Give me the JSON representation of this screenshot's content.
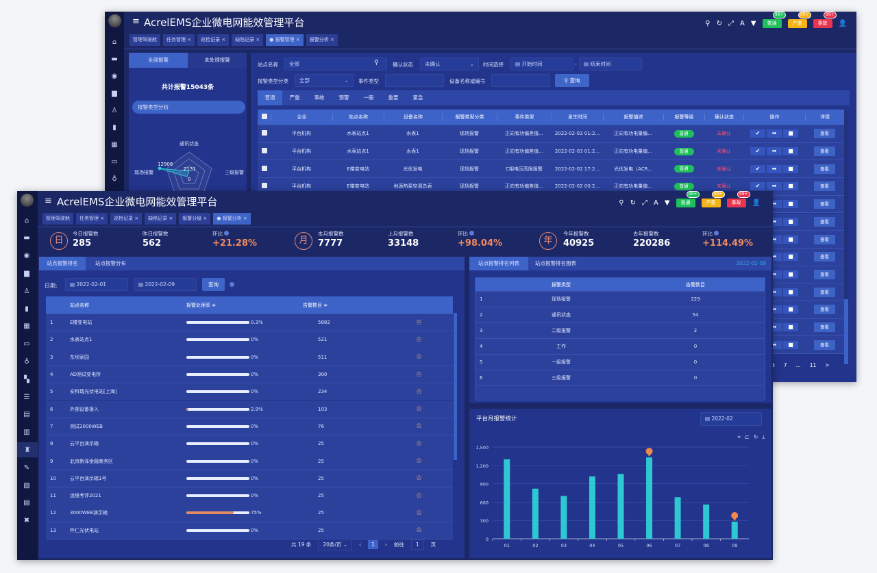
{
  "app_title": "AcrelEMS企业微电网能效管理平台",
  "header_icons": [
    "search-icon",
    "refresh-icon",
    "fullscreen-icon",
    "font-size-icon",
    "theme-shirt-icon"
  ],
  "badges": [
    {
      "label": "普通",
      "count": "99+",
      "color": "#1fbf5b"
    },
    {
      "label": "严重",
      "count": "99+",
      "color": "#f5b316"
    },
    {
      "label": "事故",
      "count": "99+",
      "color": "#e8344e"
    }
  ],
  "back": {
    "tabs": [
      {
        "label": "管理驾驶舱",
        "active": false
      },
      {
        "label": "任务管理 ×",
        "active": false
      },
      {
        "label": "巡检记录 ×",
        "active": false
      },
      {
        "label": "缺陷记录 ×",
        "active": false
      },
      {
        "label": "● 报警管理 ×",
        "active": true
      },
      {
        "label": "报警分析 ×",
        "active": false
      }
    ],
    "left": {
      "tab_all": "全部报警",
      "tab_unhandled": "未处理报警",
      "total": "共计报警15043条",
      "section": "报警类型分析",
      "radar_labels": [
        "通讯状态",
        "三级报警",
        "现场报警"
      ],
      "radar_values": [
        "12906",
        "2131",
        "0"
      ]
    },
    "filters": {
      "site_label": "站点名称",
      "site_value": "全部",
      "confirm_label": "确认状态",
      "confirm_value": "未确认",
      "time_label": "时间选择",
      "start_placeholder": "开始时间",
      "end_placeholder": "结束时间",
      "type_label": "报警类型分类",
      "type_value": "全部",
      "event_label": "事件类型",
      "device_label": "设备名称或编号",
      "query": "查询"
    },
    "level_tabs": [
      "普通",
      "严重",
      "事故",
      "预警",
      "一般",
      "重要",
      "紧急"
    ],
    "columns": [
      "企业",
      "站点名称",
      "设备名称",
      "报警类型分类",
      "事件类型",
      "发生时间",
      "报警描述",
      "报警等级",
      "确认状态",
      "操作",
      "详情"
    ],
    "rows": [
      {
        "org": "平台机构",
        "site": "水表站点1",
        "device": "水表1",
        "type": "现场报警",
        "event": "正向有功偏差值...",
        "time": "2022-02-03 01:2...",
        "desc": "正向有功电量偏...",
        "level": "普通",
        "status": "未确认",
        "detail": "查看"
      },
      {
        "org": "平台机构",
        "site": "水表站点1",
        "device": "水表1",
        "type": "现场报警",
        "event": "正向有功偏差值...",
        "time": "2022-02-03 01:2...",
        "desc": "正向有功电量偏...",
        "level": "普通",
        "status": "未确认",
        "detail": "查看"
      },
      {
        "org": "平台机构",
        "site": "E楼变电站",
        "device": "光伏发电",
        "type": "现场报警",
        "event": "C相电压高限报警",
        "time": "2022-02-02 17:2...",
        "desc": "光伏发电（ACR...",
        "level": "普通",
        "status": "未确认",
        "detail": "查看"
      },
      {
        "org": "平台机构",
        "site": "E楼变电站",
        "device": "地源热泵空调总表",
        "type": "现场报警",
        "event": "正向有功偏差值...",
        "time": "2022-02-02 00:2...",
        "desc": "正向有功电量偏...",
        "level": "普通",
        "status": "未确认",
        "detail": "查看"
      },
      {
        "detail": "查看"
      },
      {
        "detail": "查看"
      },
      {
        "detail": "查看"
      },
      {
        "detail": "查看"
      },
      {
        "detail": "查看"
      },
      {
        "detail": "查看"
      },
      {
        "detail": "查看"
      },
      {
        "detail": "查看"
      },
      {
        "detail": "查看"
      }
    ],
    "pagination": [
      "6",
      "7",
      "...",
      "11",
      ">"
    ]
  },
  "front": {
    "tabs": [
      {
        "label": "管理驾驶舱",
        "active": false
      },
      {
        "label": "任务管理 ×",
        "active": false
      },
      {
        "label": "巡检记录 ×",
        "active": false
      },
      {
        "label": "缺陷记录 ×",
        "active": false
      },
      {
        "label": "报警分级 ×",
        "active": false
      },
      {
        "label": "● 报警分析 ×",
        "active": true
      }
    ],
    "stats": [
      {
        "icon": "日",
        "items": [
          {
            "k": "今日报警数",
            "v": "285"
          },
          {
            "k": "昨日报警数",
            "v": "562"
          },
          {
            "k": "环比",
            "v": "+21.28%",
            "ratio": true
          }
        ]
      },
      {
        "icon": "月",
        "items": [
          {
            "k": "本月报警数",
            "v": "7777"
          },
          {
            "k": "上月报警数",
            "v": "33148"
          },
          {
            "k": "环比",
            "v": "+98.04%",
            "ratio": true
          }
        ]
      },
      {
        "icon": "年",
        "items": [
          {
            "k": "今年报警数",
            "v": "40925"
          },
          {
            "k": "去年报警数",
            "v": "220286"
          },
          {
            "k": "环比",
            "v": "+114.49%",
            "ratio": true
          }
        ]
      }
    ],
    "left": {
      "tab1": "站点报警排名",
      "tab2": "站点报警分布",
      "date_label": "日期:",
      "date_start": "2022-02-01",
      "date_end": "2022-02-09",
      "query": "查询",
      "columns": [
        "站点名称",
        "报警处理率 ≑",
        "告警数目 ≑"
      ],
      "rows": [
        {
          "n": "1",
          "name": "E楼变电站",
          "rate": "0.3%",
          "pct": 0.3,
          "count": "5882"
        },
        {
          "n": "2",
          "name": "水表站点1",
          "rate": "0%",
          "pct": 0,
          "count": "521"
        },
        {
          "n": "3",
          "name": "东坝家园",
          "rate": "0%",
          "pct": 0,
          "count": "511"
        },
        {
          "n": "4",
          "name": "AD测试变电所",
          "rate": "0%",
          "pct": 0,
          "count": "300"
        },
        {
          "n": "5",
          "name": "安科瑞光伏电站[上海]",
          "rate": "0%",
          "pct": 0,
          "count": "234"
        },
        {
          "n": "6",
          "name": "外部设备接入",
          "rate": "2.9%",
          "pct": 2.9,
          "count": "103"
        },
        {
          "n": "7",
          "name": "测试3000WEB",
          "rate": "0%",
          "pct": 0,
          "count": "76"
        },
        {
          "n": "8",
          "name": "云平台演示箱",
          "rate": "0%",
          "pct": 0,
          "count": "25"
        },
        {
          "n": "9",
          "name": "北京新泽金融商务区",
          "rate": "0%",
          "pct": 0,
          "count": "25"
        },
        {
          "n": "10",
          "name": "云平台演示箱1号",
          "rate": "0%",
          "pct": 0,
          "count": "25"
        },
        {
          "n": "11",
          "name": "运维考评2021",
          "rate": "0%",
          "pct": 0,
          "count": "25"
        },
        {
          "n": "12",
          "name": "3000WEB演示箱",
          "rate": "75%",
          "pct": 75,
          "count": "25"
        },
        {
          "n": "13",
          "name": "怀仁光伏电站",
          "rate": "0%",
          "pct": 0,
          "count": "25"
        }
      ],
      "pager": {
        "total": "共 19 条",
        "size": "20条/页",
        "page": "1",
        "goto": "前往",
        "goto_value": "1",
        "unit": "页"
      }
    },
    "right": {
      "tab1": "站点报警排名列表",
      "tab2": "站点报警排名图表",
      "date": "2022-02-09",
      "columns": [
        "报警类型",
        "告警数目"
      ],
      "rows": [
        {
          "n": "1",
          "type": "现场报警",
          "count": "229"
        },
        {
          "n": "2",
          "type": "通讯状态",
          "count": "54"
        },
        {
          "n": "3",
          "type": "二级报警",
          "count": "2"
        },
        {
          "n": "4",
          "type": "工作",
          "count": "0"
        },
        {
          "n": "5",
          "type": "一级报警",
          "count": "0"
        },
        {
          "n": "6",
          "type": "三级报警",
          "count": "0"
        }
      ]
    },
    "chart_title": "平台月报警统计",
    "chart_month": "2022-02"
  },
  "chart_data": {
    "type": "bar",
    "title": "平台月报警统计",
    "categories": [
      "01",
      "02",
      "03",
      "04",
      "05",
      "06",
      "07",
      "08",
      "09"
    ],
    "values": [
      1300,
      820,
      700,
      1020,
      1060,
      1330,
      680,
      560,
      280
    ],
    "ylim": [
      0,
      1500
    ],
    "yticks": [
      "0",
      "300",
      "600",
      "900",
      "1,200",
      "1,500"
    ],
    "color": "#2ec7d3",
    "markers": [
      "max",
      "min"
    ],
    "grid": true
  }
}
